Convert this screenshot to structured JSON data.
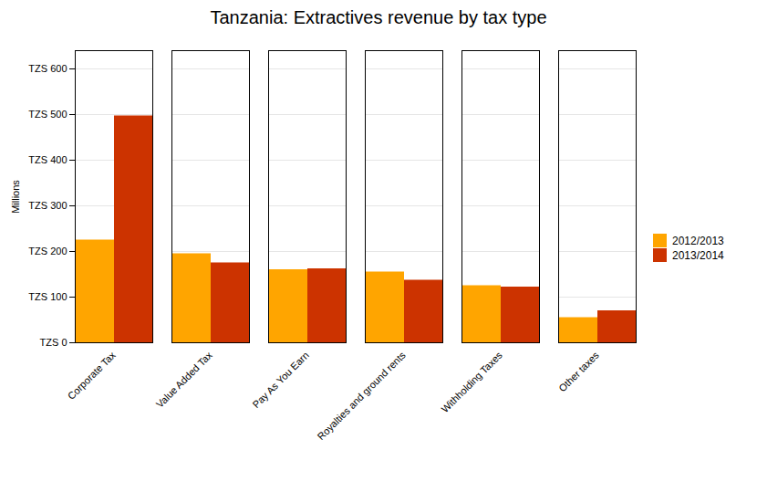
{
  "chart_data": {
    "type": "bar",
    "title": "Tanzania: Extractives revenue by tax type",
    "categories": [
      "Corporate Tax",
      "Value Added Tax",
      "Pay As You Earn",
      "Royalties and ground rents",
      "Withholding Taxes",
      "Other taxes"
    ],
    "series": [
      {
        "name": "2012/2013",
        "color": "#FFA500",
        "values": [
          225,
          195,
          160,
          155,
          125,
          55
        ]
      },
      {
        "name": "2013/2014",
        "color": "#CC3300",
        "values": [
          497,
          175,
          162,
          137,
          122,
          70
        ]
      }
    ],
    "ylabel": "Millions",
    "ylim": [
      0,
      640
    ],
    "yticks": [
      {
        "value": 0,
        "label": "TZS 0"
      },
      {
        "value": 100,
        "label": "TZS 100"
      },
      {
        "value": 200,
        "label": "TZS 200"
      },
      {
        "value": 300,
        "label": "TZS 300"
      },
      {
        "value": 400,
        "label": "TZS 400"
      },
      {
        "value": 500,
        "label": "TZS 500"
      },
      {
        "value": 600,
        "label": "TZS 600"
      }
    ],
    "grid": true,
    "legend": "right"
  }
}
